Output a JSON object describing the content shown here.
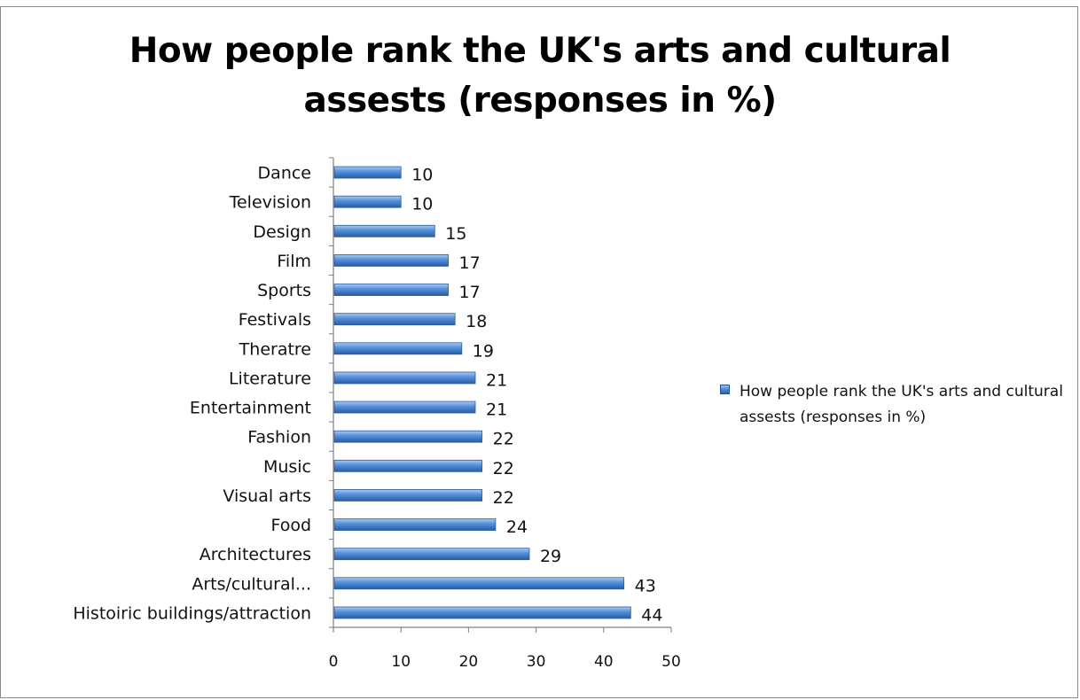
{
  "chart_data": {
    "type": "bar",
    "orientation": "horizontal",
    "title": "How people rank the UK's arts and cultural assests (responses in %)",
    "title_lines": [
      "How people rank the UK's arts and cultural",
      "assests (responses in %)"
    ],
    "categories": [
      "Dance",
      "Television",
      "Design",
      "Film",
      "Sports",
      "Festivals",
      "Theratre",
      "Literature",
      "Entertainment",
      "Fashion",
      "Music",
      "Visual arts",
      "Food",
      "Architectures",
      "Arts/cultural...",
      "Histoiric buildings/attraction"
    ],
    "series": [
      {
        "name": "How people rank the UK's arts and cultural assests (responses in %)",
        "values": [
          10,
          10,
          15,
          17,
          17,
          18,
          19,
          21,
          21,
          22,
          22,
          22,
          24,
          29,
          43,
          44
        ],
        "color": "#4a86d1"
      }
    ],
    "xlim": [
      0,
      50
    ],
    "xticks": [
      "0",
      "10",
      "20",
      "30",
      "40",
      "50"
    ],
    "xlabel": "",
    "ylabel": "",
    "data_labels": true,
    "grid": false,
    "legend_position": "right"
  }
}
